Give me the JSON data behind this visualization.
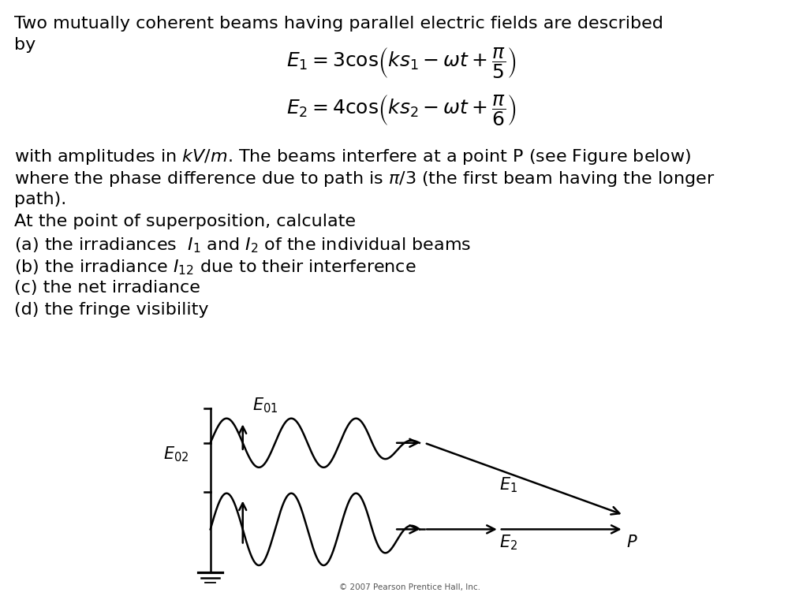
{
  "bg_color": "#ffffff",
  "text_color": "#000000",
  "eq1": "$E_1 = 3\\,\\mathrm{cos}\\!\\left(ks_1 - \\omega t + \\dfrac{\\pi}{5}\\right)$",
  "eq2": "$E_2 = 4\\,\\mathrm{cos}\\!\\left(ks_2 - \\omega t + \\dfrac{\\pi}{6}\\right)$",
  "copyright": "© 2007 Pearson Prentice Hall, Inc.",
  "body_fontsize": 16,
  "eq_fontsize": 18,
  "diag_fontsize": 15
}
